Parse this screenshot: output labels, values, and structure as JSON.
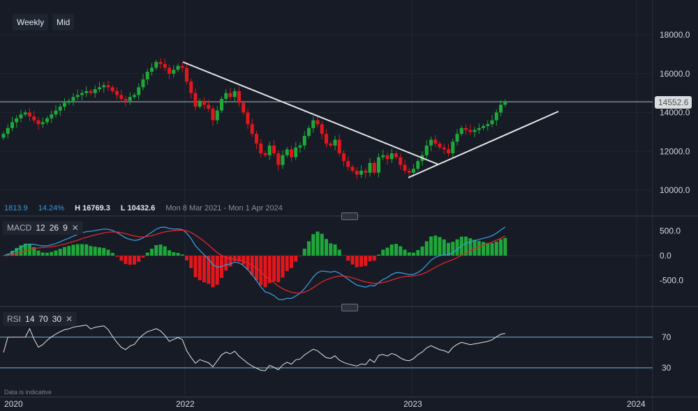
{
  "toolbar": {
    "timeframe": "Weekly",
    "price_type": "Mid"
  },
  "info": {
    "change": "1813.9",
    "change_pct": "14.24%",
    "high": "H 16769.3",
    "low": "L 10432.6",
    "range": "Mon 8 Mar 2021 - Mon 1 Apr 2024"
  },
  "current_price": "14552.6",
  "macd": {
    "name": "MACD",
    "fast": "12",
    "slow": "26",
    "signal": "9",
    "close": "✕"
  },
  "rsi": {
    "name": "RSI",
    "period": "14",
    "upper": "70",
    "lower": "30",
    "close": "✕"
  },
  "disclaimer": "Data is indicative",
  "colors": {
    "up": "#1fa83a",
    "down": "#e3161c",
    "macd": "#3a9ad9",
    "signal": "#e3262c",
    "rsi": "#e6e6e6",
    "band": "#7fb8d8"
  },
  "chart_data": {
    "type": "candlestick",
    "price_axis": {
      "ticks": [
        "18000.0",
        "16000.0",
        "14000.0",
        "12000.0",
        "10000.0"
      ],
      "range": [
        10000,
        18000
      ]
    },
    "macd_axis": {
      "ticks": [
        "500.0",
        "0.0",
        "-500.0"
      ]
    },
    "rsi_axis": {
      "ticks": [
        "70",
        "30"
      ]
    },
    "time_axis": [
      "2020",
      "2022",
      "2023",
      "2024"
    ],
    "weekly_close": [
      12900,
      13200,
      13500,
      13700,
      13900,
      14000,
      13800,
      13600,
      13400,
      13500,
      13700,
      13900,
      14100,
      14300,
      14500,
      14600,
      14800,
      14900,
      15000,
      15100,
      15000,
      15200,
      15300,
      15400,
      15300,
      15100,
      14900,
      14700,
      14600,
      14800,
      14900,
      15300,
      15700,
      16100,
      16300,
      16600,
      16500,
      16300,
      16000,
      16200,
      16400,
      16300,
      15600,
      15000,
      14300,
      14600,
      14400,
      14200,
      13600,
      14100,
      14700,
      15000,
      14800,
      15100,
      14500,
      14000,
      13400,
      12900,
      12400,
      11900,
      11800,
      12300,
      11900,
      11300,
      11800,
      12100,
      11700,
      12200,
      12300,
      12800,
      13200,
      13600,
      13400,
      12900,
      12400,
      12300,
      12600,
      11900,
      11500,
      11200,
      11000,
      10800,
      11000,
      10900,
      11400,
      10900,
      11700,
      11800,
      11600,
      11900,
      11700,
      11300,
      11000,
      10900,
      11100,
      11500,
      11800,
      12300,
      12600,
      12400,
      12200,
      12100,
      11900,
      12500,
      12900,
      13200,
      13100,
      13000,
      13100,
      13200,
      13300,
      13400,
      13600,
      14000,
      14400,
      14552.6
    ],
    "trendlines": [
      {
        "from": [
          "2021-12",
          "16600"
        ],
        "to": [
          "2023-02",
          "11400"
        ]
      },
      {
        "from": [
          "2022-12",
          "10700"
        ],
        "to": [
          "2023-09",
          "14100"
        ]
      }
    ]
  }
}
